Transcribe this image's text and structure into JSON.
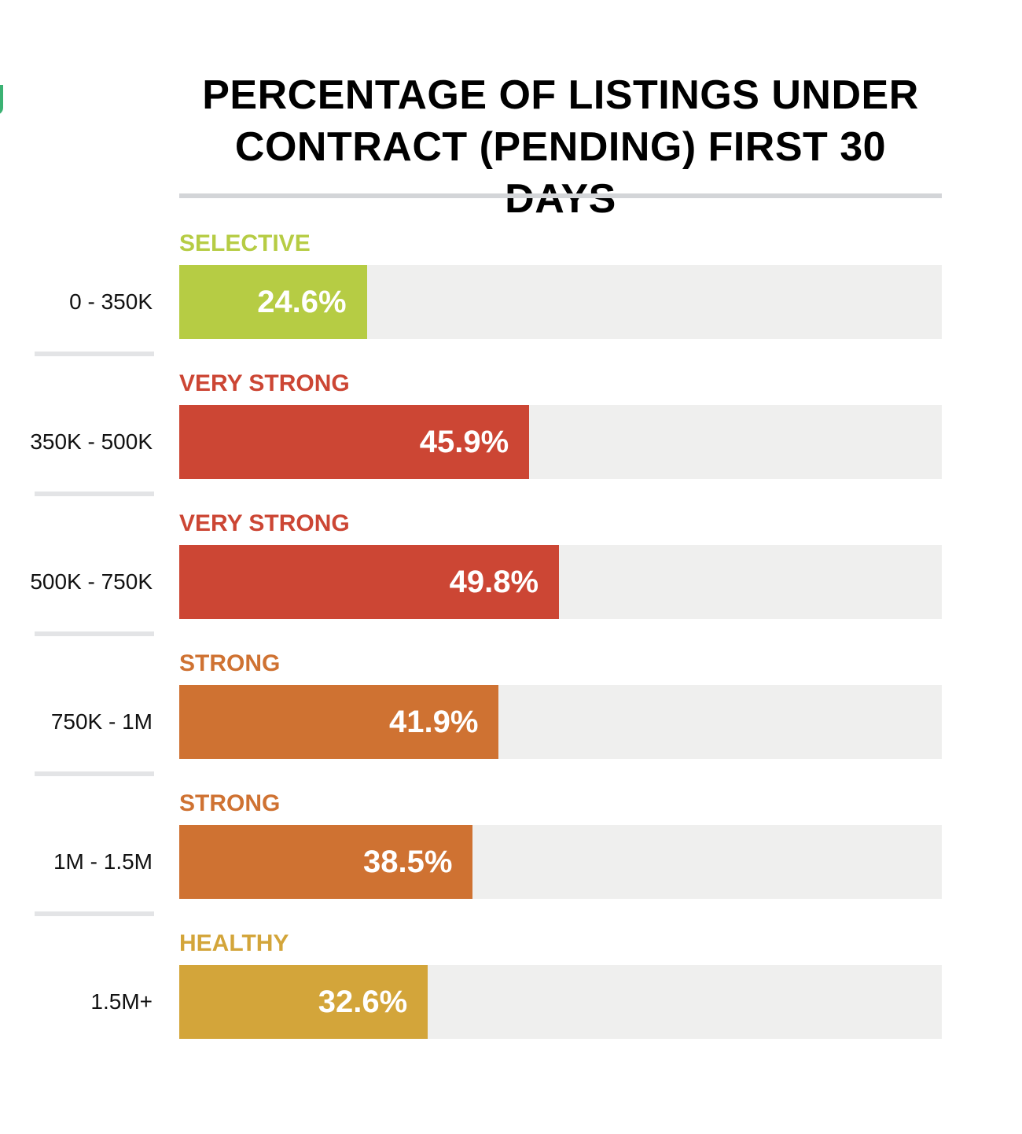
{
  "chart_data": {
    "type": "bar",
    "orientation": "horizontal",
    "title": "PERCENTAGE OF LISTINGS UNDER CONTRACT (PENDING) FIRST 30 DAYS",
    "title_lines": [
      "PERCENTAGE OF LISTINGS UNDER",
      "CONTRACT (PENDING) FIRST 30 DAYS"
    ],
    "xlim": [
      0,
      100
    ],
    "unit": "%",
    "categories": [
      "0 - 350K",
      "350K - 500K",
      "500K - 750K",
      "750K - 1M",
      "1M - 1.5M",
      "1.5M+"
    ],
    "values": [
      24.6,
      45.9,
      49.8,
      41.9,
      38.5,
      32.6
    ],
    "value_labels": [
      "24.6%",
      "45.9%",
      "49.8%",
      "41.9%",
      "38.5%",
      "32.6%"
    ],
    "status_labels": [
      "SELECTIVE",
      "VERY STRONG",
      "VERY STRONG",
      "STRONG",
      "STRONG",
      "HEALTHY"
    ],
    "status_colors": [
      "#b6cc44",
      "#cc4634",
      "#cc4634",
      "#cf7232",
      "#cf7232",
      "#d3a53a"
    ],
    "track_color": "#efefee"
  },
  "colors": {
    "selective": "#b6cc44",
    "very_strong": "#cc4634",
    "strong": "#cf7232",
    "healthy": "#d3a53a",
    "logo_accent": "#3bb273"
  }
}
